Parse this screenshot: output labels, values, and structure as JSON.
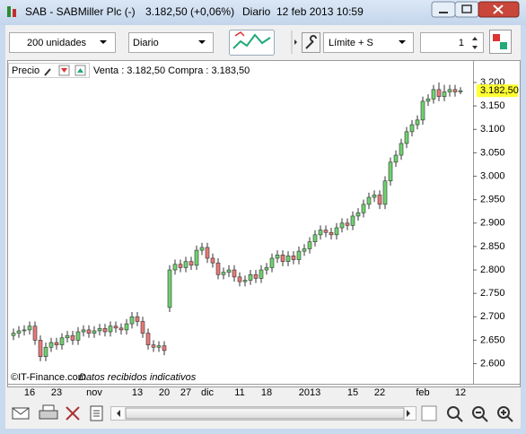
{
  "window": {
    "title": "SAB - SABMiller Plc (-)",
    "price": "3.182,50 (+0,06%)",
    "period": "Diario",
    "datetime": "12 feb 2013 10:59"
  },
  "toolbar": {
    "quantity": "200 unidades",
    "period": "Diario",
    "order_type": "Límite + S",
    "spinner": "1"
  },
  "chart_header": {
    "label": "Precio",
    "quote": "Venta : 3.182,50 Compra : 3.183,50"
  },
  "chart_data": {
    "type": "candlestick",
    "categories": [
      null,
      null,
      null,
      "16",
      null,
      null,
      null,
      null,
      "23",
      null,
      null,
      null,
      null,
      null,
      null,
      "nov",
      null,
      null,
      null,
      null,
      null,
      null,
      null,
      "13",
      null,
      null,
      null,
      null,
      "20",
      null,
      null,
      null,
      "27",
      null,
      null,
      null,
      "dic",
      null,
      null,
      null,
      null,
      null,
      "11",
      null,
      null,
      null,
      null,
      "18",
      null,
      null,
      null,
      null,
      null,
      null,
      null,
      "2013",
      null,
      null,
      null,
      null,
      null,
      null,
      null,
      "15",
      null,
      null,
      null,
      null,
      "22",
      null,
      null,
      null,
      null,
      null,
      null,
      null,
      "feb",
      null,
      null,
      null,
      null,
      null,
      null,
      "12"
    ],
    "open": [
      2660,
      2665,
      2670,
      2672,
      2680,
      2650,
      2615,
      2635,
      2645,
      2640,
      2655,
      2660,
      2650,
      2668,
      2672,
      2665,
      2670,
      2675,
      2668,
      2680,
      2676,
      2672,
      2685,
      2700,
      2690,
      2665,
      2640,
      2635,
      2638,
      2720,
      2800,
      2812,
      2805,
      2818,
      2810,
      2842,
      2848,
      2825,
      2815,
      2790,
      2795,
      2800,
      2785,
      2775,
      2778,
      2790,
      2782,
      2800,
      2805,
      2825,
      2832,
      2818,
      2830,
      2822,
      2840,
      2845,
      2860,
      2875,
      2885,
      2880,
      2875,
      2890,
      2900,
      2895,
      2915,
      2922,
      2940,
      2955,
      2960,
      2940,
      2990,
      3030,
      3045,
      3070,
      3095,
      3110,
      3120,
      3160,
      3165,
      3185,
      3170,
      3180,
      3185,
      3180
    ],
    "high": [
      2675,
      2680,
      2682,
      2690,
      2690,
      2660,
      2645,
      2655,
      2655,
      2665,
      2670,
      2670,
      2678,
      2682,
      2682,
      2680,
      2685,
      2685,
      2690,
      2690,
      2686,
      2695,
      2710,
      2710,
      2700,
      2675,
      2650,
      2648,
      2648,
      2810,
      2822,
      2822,
      2828,
      2828,
      2852,
      2858,
      2858,
      2835,
      2825,
      2805,
      2810,
      2810,
      2795,
      2788,
      2800,
      2800,
      2810,
      2815,
      2835,
      2842,
      2842,
      2840,
      2840,
      2850,
      2855,
      2870,
      2885,
      2895,
      2895,
      2890,
      2900,
      2910,
      2910,
      2925,
      2932,
      2950,
      2965,
      2970,
      2970,
      3000,
      3040,
      3055,
      3080,
      3105,
      3120,
      3130,
      3170,
      3175,
      3195,
      3200,
      3195,
      3195,
      3195,
      3190
    ],
    "low": [
      2650,
      2655,
      2660,
      2662,
      2640,
      2605,
      2605,
      2625,
      2630,
      2630,
      2645,
      2640,
      2640,
      2658,
      2655,
      2655,
      2660,
      2658,
      2658,
      2666,
      2662,
      2662,
      2675,
      2680,
      2655,
      2630,
      2625,
      2625,
      2618,
      2710,
      2790,
      2795,
      2795,
      2800,
      2800,
      2832,
      2815,
      2805,
      2780,
      2780,
      2785,
      2775,
      2765,
      2765,
      2768,
      2772,
      2772,
      2790,
      2795,
      2815,
      2808,
      2808,
      2812,
      2812,
      2830,
      2835,
      2850,
      2865,
      2870,
      2865,
      2865,
      2880,
      2885,
      2885,
      2905,
      2912,
      2930,
      2945,
      2930,
      2930,
      2980,
      3020,
      3035,
      3060,
      3085,
      3100,
      3110,
      3150,
      3155,
      3160,
      3160,
      3170,
      3170,
      3175
    ],
    "close": [
      2665,
      2670,
      2672,
      2680,
      2650,
      2615,
      2635,
      2645,
      2640,
      2655,
      2660,
      2650,
      2668,
      2672,
      2665,
      2670,
      2675,
      2668,
      2680,
      2676,
      2672,
      2685,
      2700,
      2690,
      2665,
      2640,
      2635,
      2638,
      2628,
      2800,
      2812,
      2805,
      2818,
      2810,
      2842,
      2848,
      2825,
      2815,
      2790,
      2795,
      2800,
      2785,
      2775,
      2778,
      2790,
      2782,
      2800,
      2805,
      2825,
      2832,
      2818,
      2830,
      2822,
      2840,
      2845,
      2860,
      2875,
      2885,
      2880,
      2875,
      2890,
      2900,
      2895,
      2915,
      2922,
      2940,
      2955,
      2960,
      2940,
      2990,
      3030,
      3045,
      3070,
      3095,
      3110,
      3120,
      3160,
      3165,
      3185,
      3170,
      3180,
      3185,
      3180,
      3182.5
    ],
    "up_color": "#6fd26f",
    "down_color": "#e87878",
    "ylim": [
      2557,
      3246
    ],
    "yticks": [
      {
        "value": 2600,
        "label": "2.600"
      },
      {
        "value": 2650,
        "label": "2.650"
      },
      {
        "value": 2700,
        "label": "2.700"
      },
      {
        "value": 2750,
        "label": "2.750"
      },
      {
        "value": 2800,
        "label": "2.800"
      },
      {
        "value": 2850,
        "label": "2.850"
      },
      {
        "value": 2900,
        "label": "2.900"
      },
      {
        "value": 2950,
        "label": "2.950"
      },
      {
        "value": 3000,
        "label": "3.000"
      },
      {
        "value": 3050,
        "label": "3.050"
      },
      {
        "value": 3100,
        "label": "3.100"
      },
      {
        "value": 3150,
        "label": "3.150"
      },
      {
        "value": 3200,
        "label": "3.200"
      }
    ],
    "last_price": {
      "value": 3182.5,
      "label": "3.182,50"
    }
  },
  "footer": {
    "copyright": "©IT-Finance.com",
    "note": "Datos recibidos indicativos"
  }
}
